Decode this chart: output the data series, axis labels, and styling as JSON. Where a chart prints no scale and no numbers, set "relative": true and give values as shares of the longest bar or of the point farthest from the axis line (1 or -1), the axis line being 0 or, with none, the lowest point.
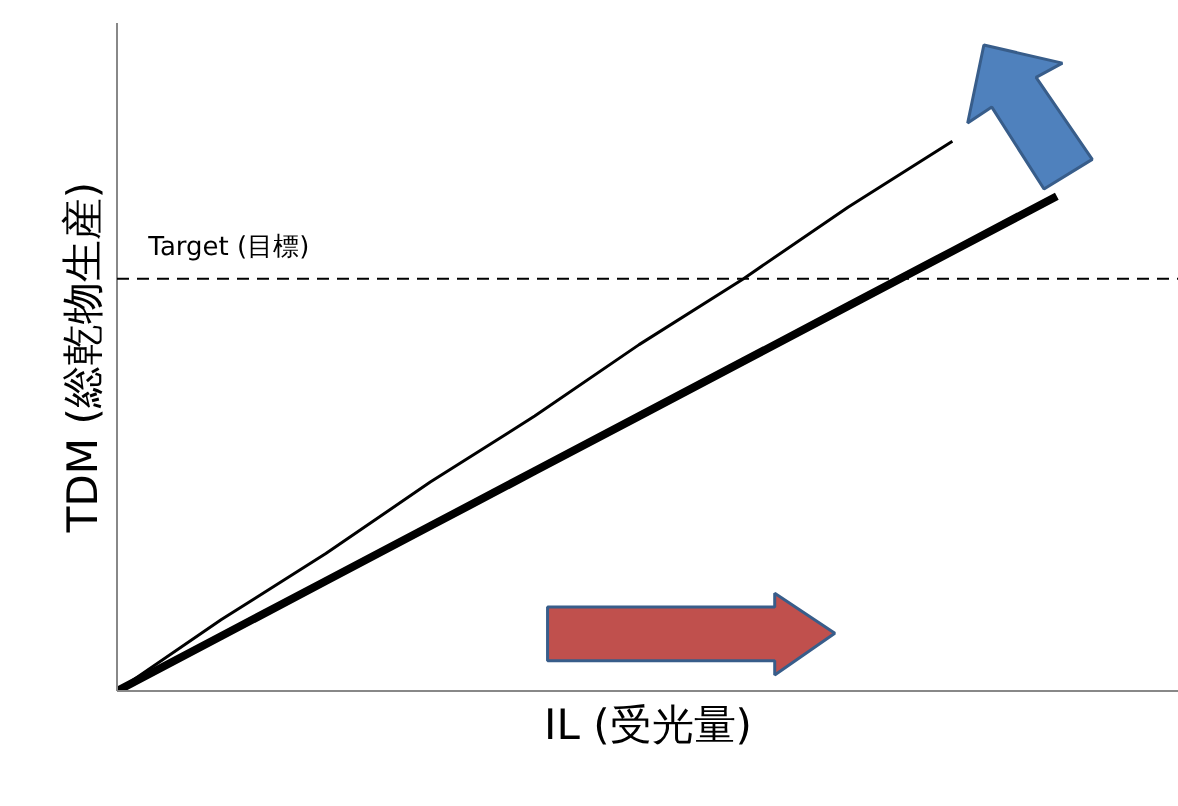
{
  "chart_data": {
    "type": "line",
    "relative": true,
    "xlabel": "IL (受光量)",
    "ylabel": "TDM (総乾物生産)",
    "categories": [
      null,
      null,
      null,
      null,
      null,
      null,
      null,
      null,
      null,
      null
    ],
    "series": [
      {
        "color": "#000000",
        "values": [
          0,
          0.13,
          0.25,
          0.38,
          0.5,
          0.63,
          0.75,
          0.88,
          1,
          null
        ]
      },
      {
        "color": "#000000",
        "values": [
          0,
          0.1,
          0.2,
          0.3,
          0.4,
          0.5,
          0.6,
          0.7,
          0.8,
          0.9
        ]
      }
    ],
    "ref_lines": [
      {
        "axis": "y",
        "value": 0.75,
        "label": "Target (目標)",
        "color": "#000000",
        "line_style": "dashed"
      }
    ],
    "marker": "none",
    "line_style": "solid"
  }
}
